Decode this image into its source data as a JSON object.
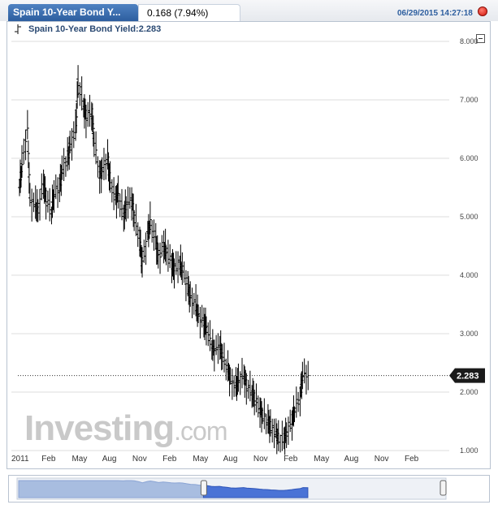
{
  "header": {
    "tab_title": "Spain 10-Year Bond Y...",
    "change": "0.168 (7.94%)",
    "timestamp": "06/29/2015 14:27:18"
  },
  "legend": {
    "series_label": "Spain 10-Year Bond Yield:2.283"
  },
  "watermark": {
    "main": "Investing",
    "suffix": ".com"
  },
  "colors": {
    "tab_blue": "#3a6db0",
    "record_red": "#e0261b",
    "navigator_fill": "#4a73d6",
    "navigator_fill_past": "#a8bde0"
  },
  "chart_data": {
    "type": "ohlc",
    "last_value": 2.283,
    "last_value_label": "2.283",
    "ylim": [
      1.0,
      8.0
    ],
    "y_ticks": [
      "1.000",
      "2.000",
      "3.000",
      "4.000",
      "5.000",
      "6.000",
      "7.000",
      "8.000"
    ],
    "x_ticks": [
      "2011",
      "Feb",
      "May",
      "Aug",
      "Nov",
      "Feb",
      "May",
      "Aug",
      "Nov",
      "Feb",
      "May",
      "Aug",
      "Nov",
      "Feb"
    ],
    "x_range": [
      "2011-01",
      "2015-06"
    ],
    "grid": true,
    "series": [
      {
        "points": [
          [
            "2011-01",
            5.5
          ],
          [
            "2011-01",
            5.9
          ],
          [
            "2011-02",
            6.5
          ],
          [
            "2011-02",
            5.3
          ],
          [
            "2011-03",
            5.2
          ],
          [
            "2011-03",
            5.1
          ],
          [
            "2011-04",
            5.6
          ],
          [
            "2011-04",
            5.3
          ],
          [
            "2011-05",
            5.1
          ],
          [
            "2011-05",
            5.4
          ],
          [
            "2011-06",
            5.5
          ],
          [
            "2011-06",
            5.8
          ],
          [
            "2011-07",
            6.0
          ],
          [
            "2011-07",
            6.2
          ],
          [
            "2011-08",
            6.5
          ],
          [
            "2011-08",
            7.3
          ],
          [
            "2011-09",
            6.9
          ],
          [
            "2011-09",
            6.7
          ],
          [
            "2011-10",
            6.8
          ],
          [
            "2011-10",
            6.3
          ],
          [
            "2011-11",
            5.7
          ],
          [
            "2011-11",
            5.8
          ],
          [
            "2011-12",
            6.0
          ],
          [
            "2011-12",
            5.6
          ],
          [
            "2012-01",
            5.3
          ],
          [
            "2012-01",
            5.4
          ],
          [
            "2012-02",
            5.0
          ],
          [
            "2012-02",
            5.2
          ],
          [
            "2012-03",
            5.3
          ],
          [
            "2012-03",
            5.0
          ],
          [
            "2012-04",
            4.6
          ],
          [
            "2012-04",
            4.2
          ],
          [
            "2012-05",
            4.7
          ],
          [
            "2012-05",
            4.9
          ],
          [
            "2012-06",
            4.6
          ],
          [
            "2012-06",
            4.3
          ],
          [
            "2012-07",
            4.5
          ],
          [
            "2012-07",
            4.4
          ],
          [
            "2012-08",
            4.2
          ],
          [
            "2012-08",
            4.1
          ],
          [
            "2012-09",
            4.2
          ],
          [
            "2012-09",
            4.1
          ],
          [
            "2012-10",
            3.8
          ],
          [
            "2012-10",
            3.6
          ],
          [
            "2012-11",
            3.5
          ],
          [
            "2012-11",
            3.3
          ],
          [
            "2012-12",
            3.2
          ],
          [
            "2012-12",
            3.1
          ],
          [
            "2013-01",
            2.8
          ],
          [
            "2013-01",
            2.7
          ],
          [
            "2013-02",
            2.8
          ],
          [
            "2013-02",
            2.6
          ],
          [
            "2013-03",
            2.4
          ],
          [
            "2013-03",
            2.2
          ],
          [
            "2013-04",
            2.1
          ],
          [
            "2013-04",
            2.2
          ],
          [
            "2013-05",
            2.3
          ],
          [
            "2013-05",
            2.1
          ],
          [
            "2013-06",
            2.0
          ],
          [
            "2013-06",
            1.9
          ],
          [
            "2013-07",
            1.7
          ],
          [
            "2013-07",
            1.6
          ],
          [
            "2013-08",
            1.5
          ],
          [
            "2013-08",
            1.4
          ],
          [
            "2013-09",
            1.3
          ],
          [
            "2013-09",
            1.2
          ],
          [
            "2013-10",
            1.2
          ],
          [
            "2013-10",
            1.3
          ],
          [
            "2013-11",
            1.5
          ],
          [
            "2013-11",
            1.7
          ],
          [
            "2013-12",
            1.9
          ],
          [
            "2013-12",
            2.3
          ],
          [
            "2014-01",
            2.283
          ]
        ]
      }
    ]
  }
}
